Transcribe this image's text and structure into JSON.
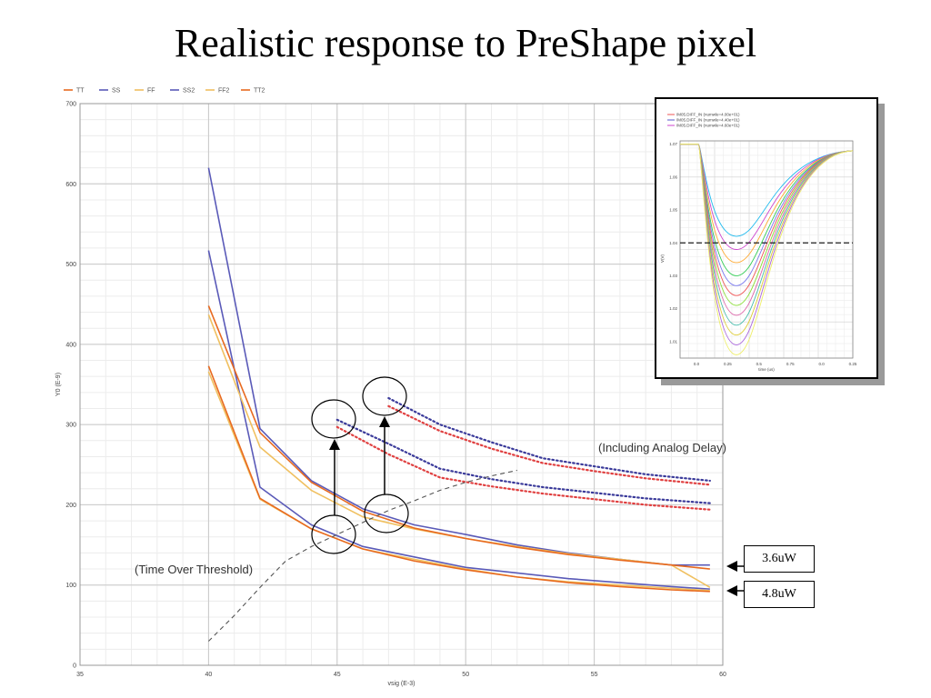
{
  "slide": {
    "title": "Realistic response to PreShape pixel"
  },
  "chart_data": [
    {
      "type": "line",
      "xlabel": "vsig (E-3)",
      "ylabel": "Y0 (E-9)",
      "xlim": [
        35,
        60
      ],
      "ylim": [
        0,
        700
      ],
      "xticks": [
        35,
        40,
        45,
        50,
        55,
        60
      ],
      "yticks": [
        0,
        100,
        200,
        300,
        400,
        500,
        600,
        700
      ],
      "grid": true,
      "legend": {
        "placement": "top-left",
        "entries": [
          "TT",
          "SS",
          "FF",
          "SS2",
          "FF2",
          "TT2"
        ]
      },
      "series": [
        {
          "name": "SS",
          "color": "#5a5ab8",
          "style": "solid",
          "x": [
            40,
            42,
            44,
            46,
            48,
            50,
            52,
            54,
            56,
            58,
            59.5
          ],
          "y": [
            620,
            295,
            230,
            195,
            175,
            163,
            150,
            140,
            132,
            125,
            125
          ]
        },
        {
          "name": "SS2",
          "color": "#5a5ab8",
          "style": "solid",
          "x": [
            40,
            42,
            44,
            46,
            48,
            50,
            52,
            54,
            56,
            58,
            59.5
          ],
          "y": [
            517,
            222,
            175,
            148,
            135,
            122,
            115,
            108,
            103,
            98,
            95
          ]
        },
        {
          "name": "FF",
          "color": "#f0c060",
          "style": "solid",
          "x": [
            40,
            42,
            44,
            46,
            48,
            50,
            52,
            54,
            56,
            58,
            59.5
          ],
          "y": [
            437,
            272,
            218,
            185,
            170,
            158,
            148,
            139,
            132,
            125,
            97
          ]
        },
        {
          "name": "TT",
          "color": "#e86a20",
          "style": "solid",
          "x": [
            40,
            42,
            44,
            46,
            48,
            50,
            52,
            54,
            56,
            58,
            59.5
          ],
          "y": [
            448,
            290,
            228,
            192,
            171,
            158,
            147,
            138,
            131,
            125,
            120
          ]
        },
        {
          "name": "FF2",
          "color": "#f0c060",
          "style": "solid",
          "x": [
            40,
            42,
            44,
            46,
            48,
            50,
            52,
            54,
            56,
            58,
            59.5
          ],
          "y": [
            366,
            207,
            170,
            145,
            132,
            120,
            110,
            104,
            100,
            96,
            93
          ]
        },
        {
          "name": "TT2",
          "color": "#e86a20",
          "style": "solid",
          "x": [
            40,
            42,
            44,
            46,
            48,
            50,
            52,
            54,
            56,
            58,
            59.5
          ],
          "y": [
            373,
            208,
            170,
            145,
            130,
            119,
            110,
            103,
            98,
            94,
            92
          ]
        },
        {
          "name": "",
          "color": "#3a3a9a",
          "style": "dotted",
          "x": [
            47,
            49,
            51,
            53,
            55,
            57,
            59.5
          ],
          "y": [
            333,
            300,
            278,
            258,
            248,
            238,
            230
          ]
        },
        {
          "name": "",
          "color": "#e04040",
          "style": "dotted",
          "x": [
            47,
            49,
            51,
            53,
            55,
            57,
            59.5
          ],
          "y": [
            323,
            292,
            270,
            252,
            242,
            233,
            225
          ]
        },
        {
          "name": "",
          "color": "#3a3a9a",
          "style": "dotted",
          "x": [
            45,
            47,
            49,
            51,
            53,
            55,
            57,
            59.5
          ],
          "y": [
            306,
            276,
            245,
            232,
            222,
            215,
            208,
            202
          ]
        },
        {
          "name": "",
          "color": "#e04040",
          "style": "dotted",
          "x": [
            45,
            47,
            49,
            51,
            53,
            55,
            57,
            59.5
          ],
          "y": [
            297,
            263,
            234,
            223,
            214,
            207,
            200,
            194
          ]
        },
        {
          "name": "",
          "color": "#555555",
          "style": "dashed",
          "x": [
            40,
            41,
            42,
            43,
            44,
            45,
            46,
            47,
            48,
            49,
            50,
            51,
            52
          ],
          "y": [
            30,
            62,
            97,
            130,
            148,
            163,
            178,
            193,
            205,
            218,
            228,
            236,
            243
          ]
        }
      ],
      "annotations": [
        {
          "text": "(Including Analog Delay)"
        },
        {
          "text": "(Time Over Threshold)"
        },
        {
          "text": "3.6uW"
        },
        {
          "text": "4.8uW"
        }
      ]
    },
    {
      "type": "line",
      "xlabel": "time (us)",
      "ylabel": "V(V)",
      "xticks": [
        "0.0",
        "0.25",
        "0.5",
        "0.75",
        "0.0",
        "0.25"
      ],
      "yticks": [
        "1.01",
        "1.02",
        "1.03",
        "1.04",
        "1.05",
        "1.06",
        "1.07"
      ],
      "ylim": [
        1.005,
        1.071
      ],
      "threshold": 1.04,
      "legend": {
        "placement": "top-left",
        "entries": [
          "/M05.DIFF_IN (numwle=4.00e+01)",
          "/M05.DIFF_IN (numwle=4.40e+01)",
          "/M05.DIFF_IN (numwle=4.60e+01)"
        ]
      },
      "curves": {
        "start": 1.07,
        "end": 1.068,
        "minima": [
          1.042,
          1.038,
          1.034,
          1.03,
          1.027,
          1.024,
          1.021,
          1.018,
          1.015,
          1.012,
          1.009,
          1.006
        ],
        "colors": [
          "#22bbee",
          "#cc44cc",
          "#ffaa33",
          "#33cc55",
          "#7777ee",
          "#ee5555",
          "#88dd33",
          "#dd66aa",
          "#44bbaa",
          "#ddcc33",
          "#aa66dd",
          "#eeee66"
        ]
      }
    }
  ]
}
